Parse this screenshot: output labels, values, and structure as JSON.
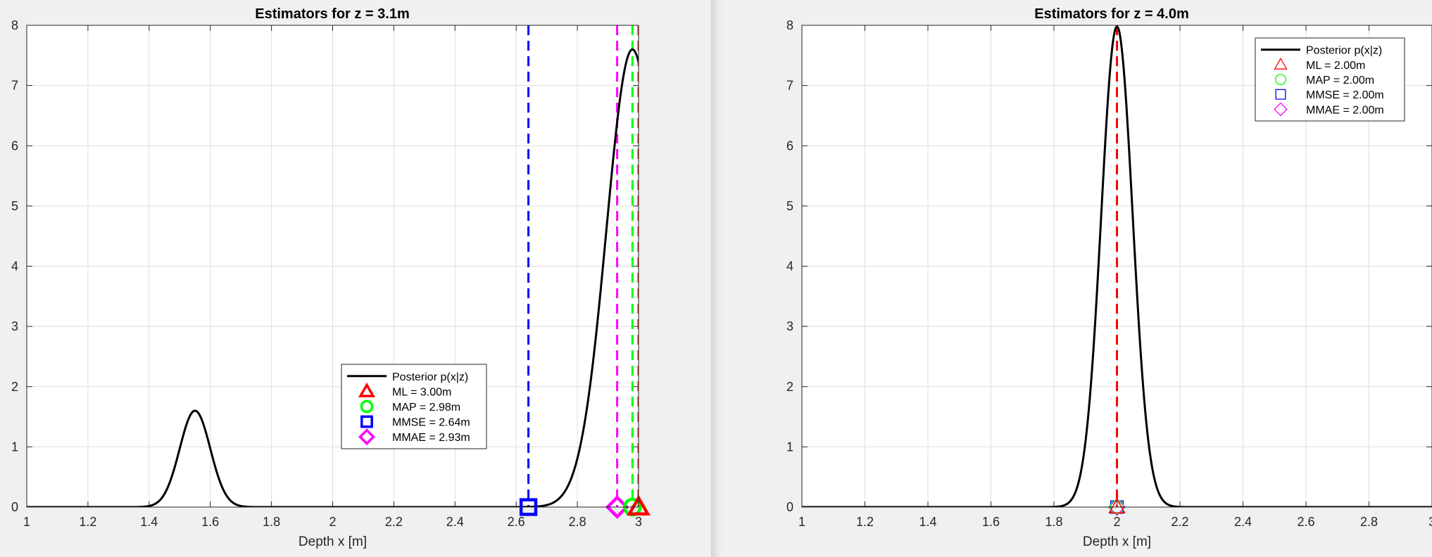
{
  "chart_data": [
    {
      "type": "line",
      "title": "Estimators for z = 3.1m",
      "xlabel": "Depth x [m]",
      "ylabel": "",
      "xlim": [
        1,
        3
      ],
      "ylim": [
        0,
        8
      ],
      "xticks": [
        "1",
        "1.2",
        "1.4",
        "1.6",
        "1.8",
        "2",
        "2.2",
        "2.4",
        "2.6",
        "2.8",
        "3"
      ],
      "yticks": [
        "0",
        "1",
        "2",
        "3",
        "4",
        "5",
        "6",
        "7",
        "8"
      ],
      "grid": true,
      "legend_position": "center-right",
      "posterior": {
        "name": "Posterior p(x|z)",
        "color": "#000000",
        "components": [
          {
            "mean": 1.55,
            "sd": 0.05,
            "peak": 1.6
          },
          {
            "mean": 2.98,
            "sd": 0.085,
            "peak": 7.6
          }
        ]
      },
      "estimators": [
        {
          "name": "ML = 3.00m",
          "x": 3.0,
          "marker": "triangle",
          "color": "#ff0000"
        },
        {
          "name": "MAP = 2.98m",
          "x": 2.98,
          "marker": "circle",
          "color": "#00ff00"
        },
        {
          "name": "MMSE = 2.64m",
          "x": 2.64,
          "marker": "square",
          "color": "#0000ff"
        },
        {
          "name": "MMAE = 2.93m",
          "x": 2.93,
          "marker": "diamond",
          "color": "#ff00ff"
        }
      ]
    },
    {
      "type": "line",
      "title": "Estimators for z = 4.0m",
      "xlabel": "Depth x [m]",
      "ylabel": "",
      "xlim": [
        1,
        3
      ],
      "ylim": [
        0,
        8
      ],
      "xticks": [
        "1",
        "1.2",
        "1.4",
        "1.6",
        "1.8",
        "2",
        "2.2",
        "2.4",
        "2.6",
        "2.8",
        "3"
      ],
      "yticks": [
        "0",
        "1",
        "2",
        "3",
        "4",
        "5",
        "6",
        "7",
        "8"
      ],
      "grid": true,
      "legend_position": "top-right",
      "posterior": {
        "name": "Posterior p(x|z)",
        "color": "#000000",
        "components": [
          {
            "mean": 2.0,
            "sd": 0.05,
            "peak": 7.98
          }
        ]
      },
      "estimators": [
        {
          "name": "ML = 2.00m",
          "x": 2.0,
          "marker": "triangle",
          "color": "#ff0000"
        },
        {
          "name": "MAP = 2.00m",
          "x": 2.0,
          "marker": "circle",
          "color": "#00ff00"
        },
        {
          "name": "MMSE = 2.00m",
          "x": 2.0,
          "marker": "square",
          "color": "#0000ff"
        },
        {
          "name": "MMAE = 2.00m",
          "x": 2.0,
          "marker": "diamond",
          "color": "#ff00ff"
        }
      ]
    }
  ]
}
